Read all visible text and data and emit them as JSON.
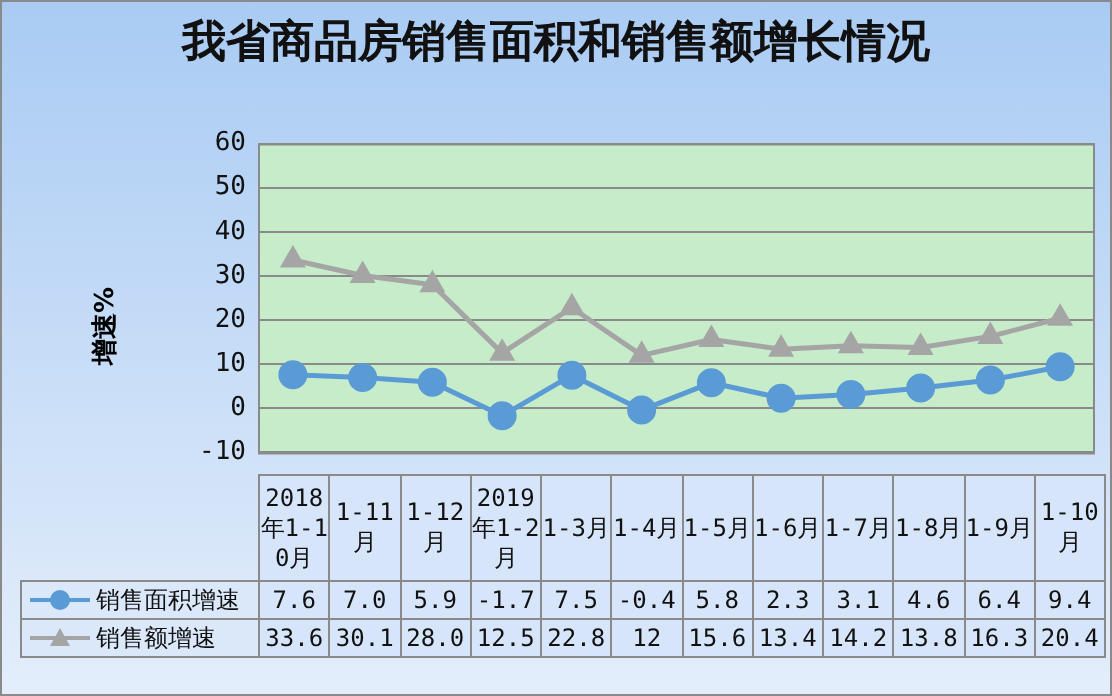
{
  "chart_data": {
    "type": "line",
    "title": "我省商品房销售面积和销售额增长情况",
    "ylabel": "增速%",
    "categories": [
      "2018年1-10月",
      "1-11月",
      "1-12月",
      "2019年1-2月",
      "1-3月",
      "1-4月",
      "1-5月",
      "1-6月",
      "1-7月",
      "1-8月",
      "1-9月",
      "1-10月"
    ],
    "series": [
      {
        "name": "销售面积增速",
        "color": "#5b9bd5",
        "marker": "circle",
        "values": [
          7.6,
          7.0,
          5.9,
          -1.7,
          7.5,
          -0.4,
          5.8,
          2.3,
          3.1,
          4.6,
          6.4,
          9.4
        ],
        "value_labels": [
          "7.6",
          "7.0",
          "5.9",
          "-1.7",
          "7.5",
          "-0.4",
          "5.8",
          "2.3",
          "3.1",
          "4.6",
          "6.4",
          "9.4"
        ]
      },
      {
        "name": "销售额增速",
        "color": "#a5a5a5",
        "marker": "triangle",
        "values": [
          33.6,
          30.1,
          28.0,
          12.5,
          22.8,
          12,
          15.6,
          13.4,
          14.2,
          13.8,
          16.3,
          20.4
        ],
        "value_labels": [
          "33.6",
          "30.1",
          "28.0",
          "12.5",
          "22.8",
          "12",
          "15.6",
          "13.4",
          "14.2",
          "13.8",
          "16.3",
          "20.4"
        ]
      }
    ],
    "ylim": [
      -10,
      60
    ],
    "yticks": [
      -10,
      0,
      10,
      20,
      30,
      40,
      50,
      60
    ],
    "grid": "y",
    "legend": "bottom left"
  }
}
